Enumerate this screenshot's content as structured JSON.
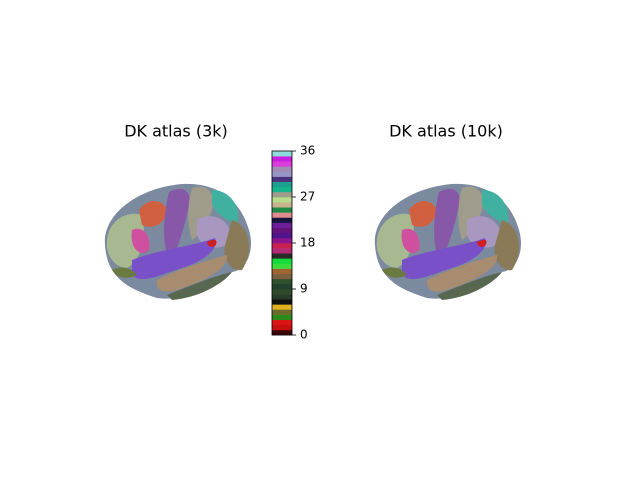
{
  "chart_data": [
    {
      "type": "brain",
      "title": "DK atlas (3k)",
      "colorbar": {
        "clim": [
          0,
          36
        ],
        "ticks": [
          0,
          9,
          18,
          27,
          36
        ],
        "colors": [
          "#3a0808",
          "#c81010",
          "#dc1414",
          "#2a8a1a",
          "#6a6a2a",
          "#e0b020",
          "#101010",
          "#283a28",
          "#2e4a2a",
          "#23402e",
          "#30502e",
          "#786040",
          "#a06432",
          "#3cdc3c",
          "#14dc3c",
          "#2a2a2a",
          "#b42878",
          "#c82350",
          "#8c148c",
          "#50148c",
          "#641478",
          "#6a1e9a",
          "#14143c",
          "#e08c8c",
          "#1e8a46",
          "#c8b48c",
          "#b4dc8c",
          "#a09c8c",
          "#14b48c",
          "#1ea090",
          "#4b327d",
          "#9696c8",
          "#a08cb4",
          "#dc3cdc",
          "#c81ee0",
          "#8cdcdc"
        ]
      }
    },
    {
      "type": "brain",
      "title": "DK atlas (10k)"
    }
  ]
}
